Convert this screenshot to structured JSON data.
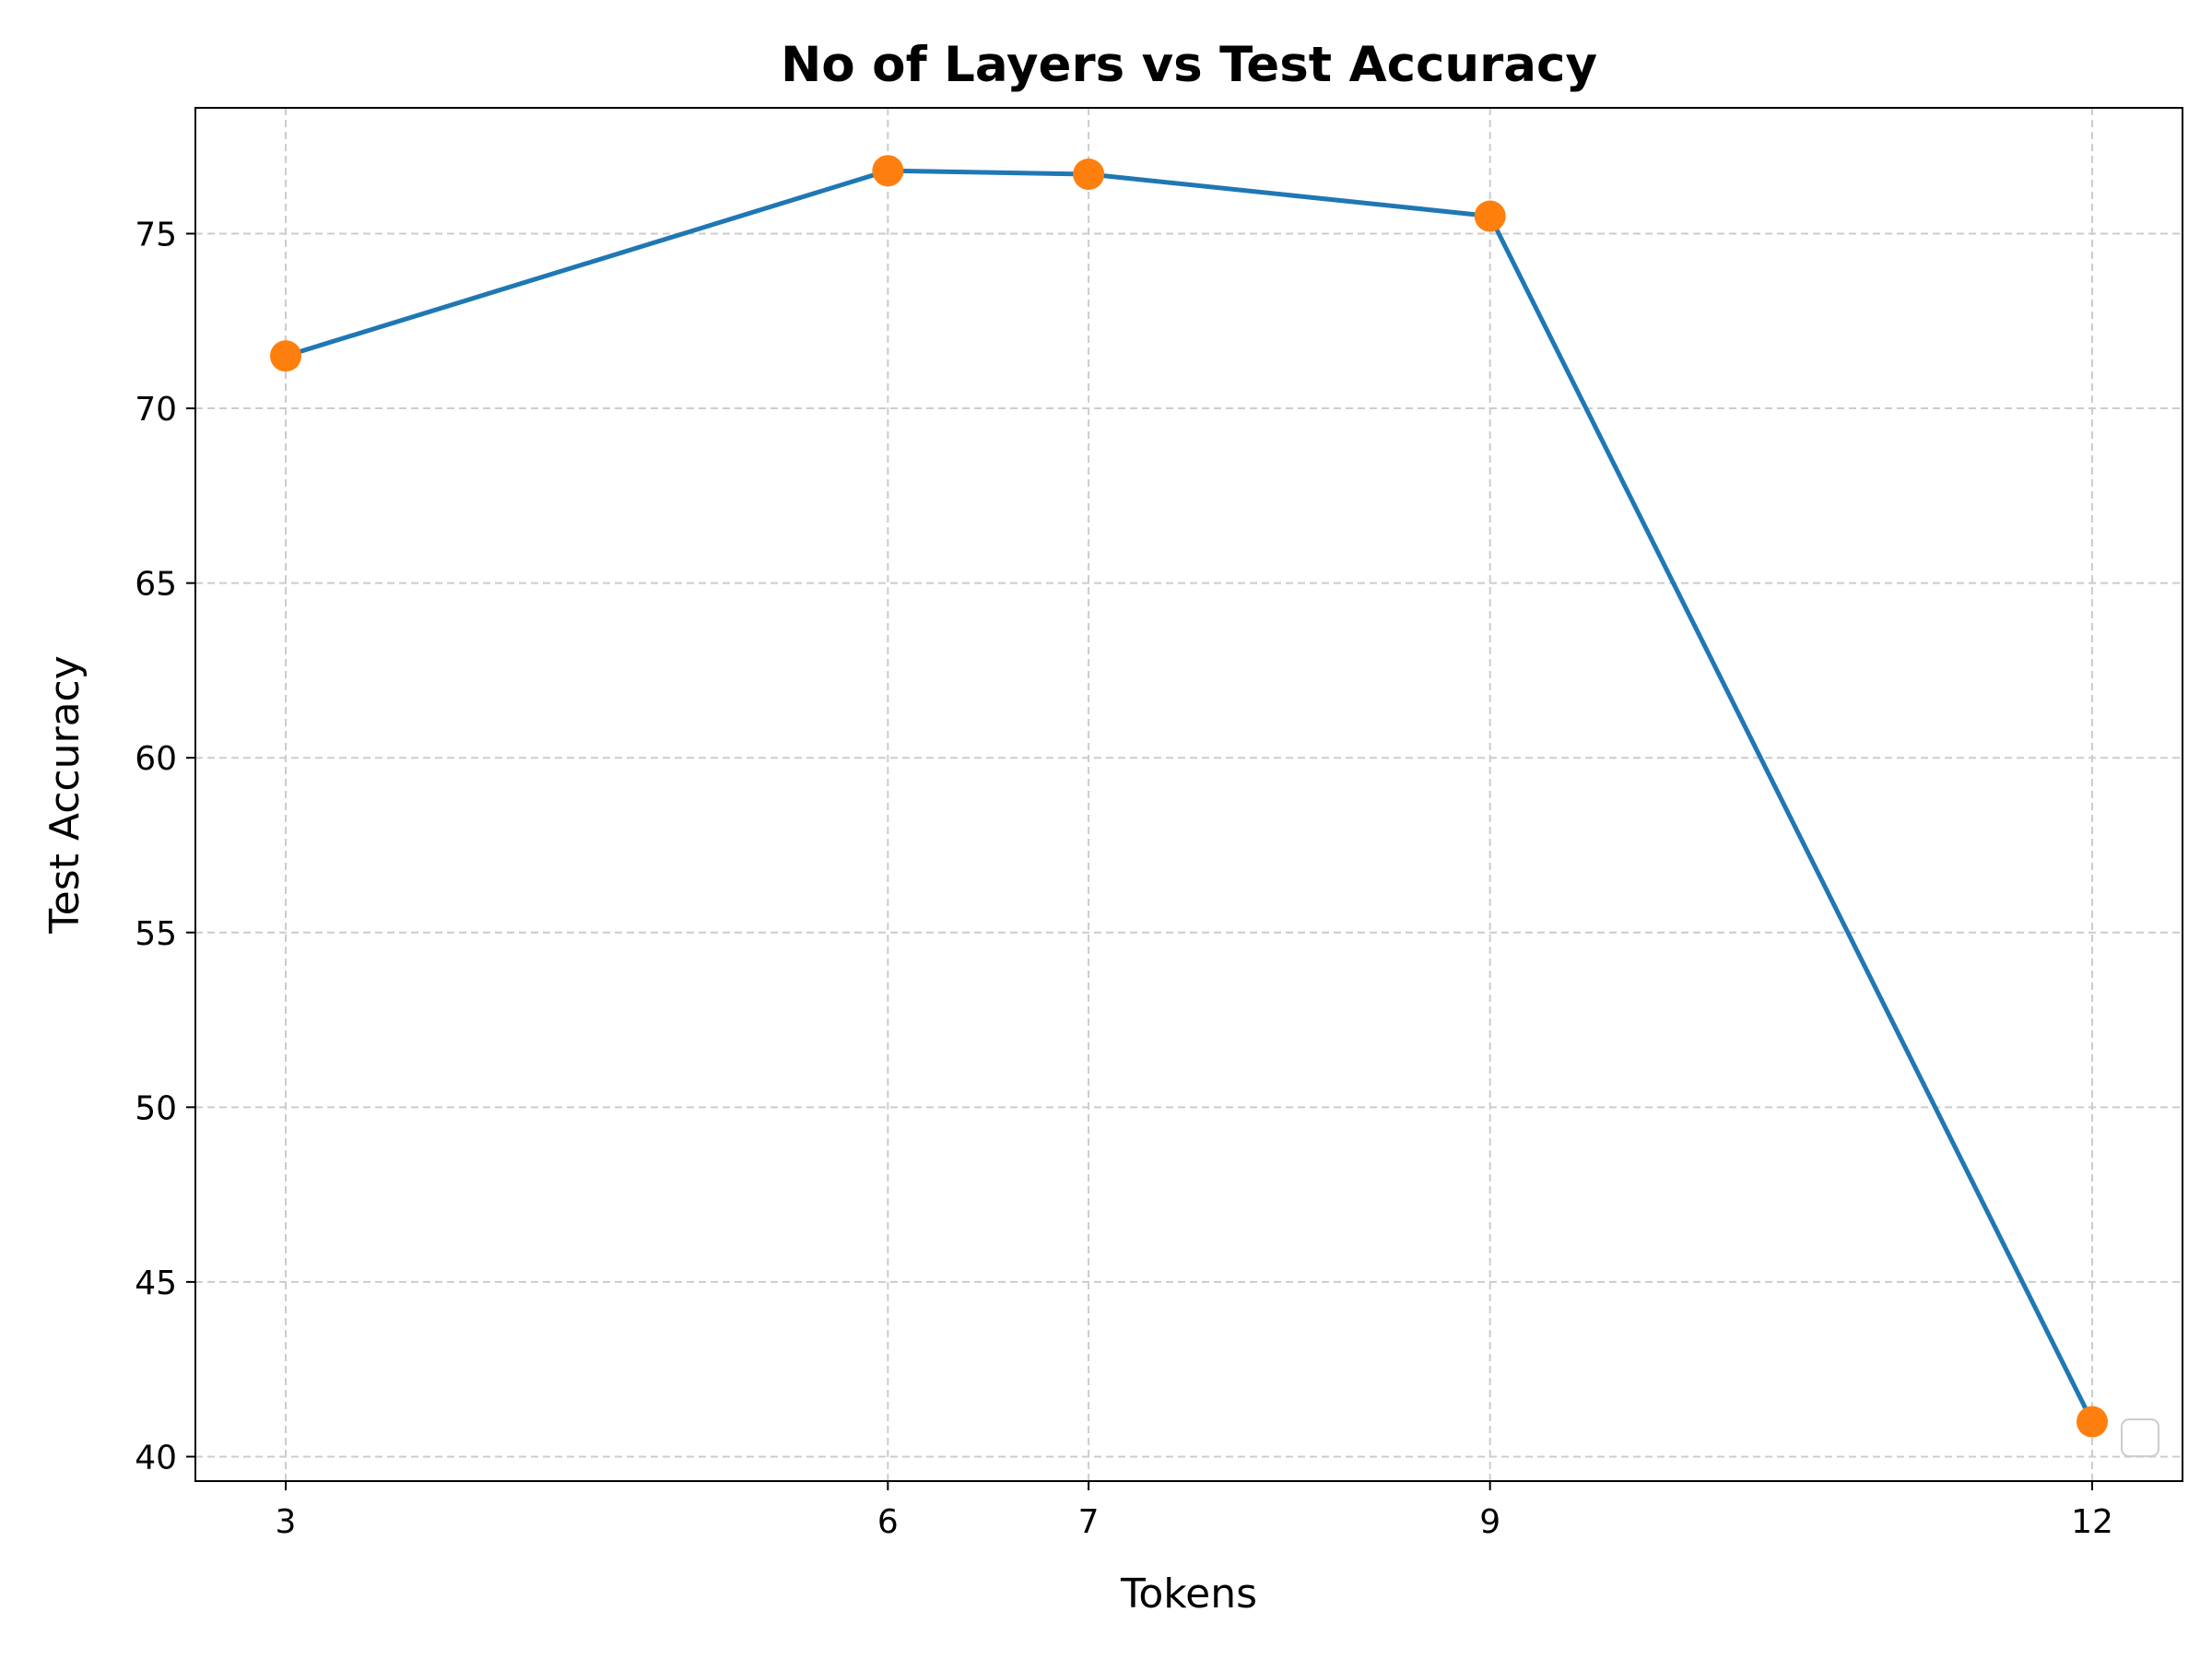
{
  "chart_data": {
    "type": "line",
    "title": "No of Layers vs Test Accuracy",
    "xlabel": "Tokens",
    "ylabel": "Test Accuracy",
    "x": [
      3,
      6,
      7,
      9,
      12
    ],
    "series": [
      {
        "values": [
          71.5,
          76.8,
          76.7,
          75.5,
          41.0
        ]
      }
    ],
    "xticks": [
      "3",
      "6",
      "7",
      "9",
      "12"
    ],
    "yticks": [
      "40",
      "45",
      "50",
      "55",
      "60",
      "65",
      "70",
      "75"
    ],
    "xlim": [
      2.55,
      12.45
    ],
    "ylim": [
      39.3,
      78.6
    ],
    "grid": true,
    "legend_placement": "lower-right",
    "colors": {
      "line": "#1f77b4",
      "markers": "#ff7f0e",
      "grid": "#cccccc"
    }
  }
}
